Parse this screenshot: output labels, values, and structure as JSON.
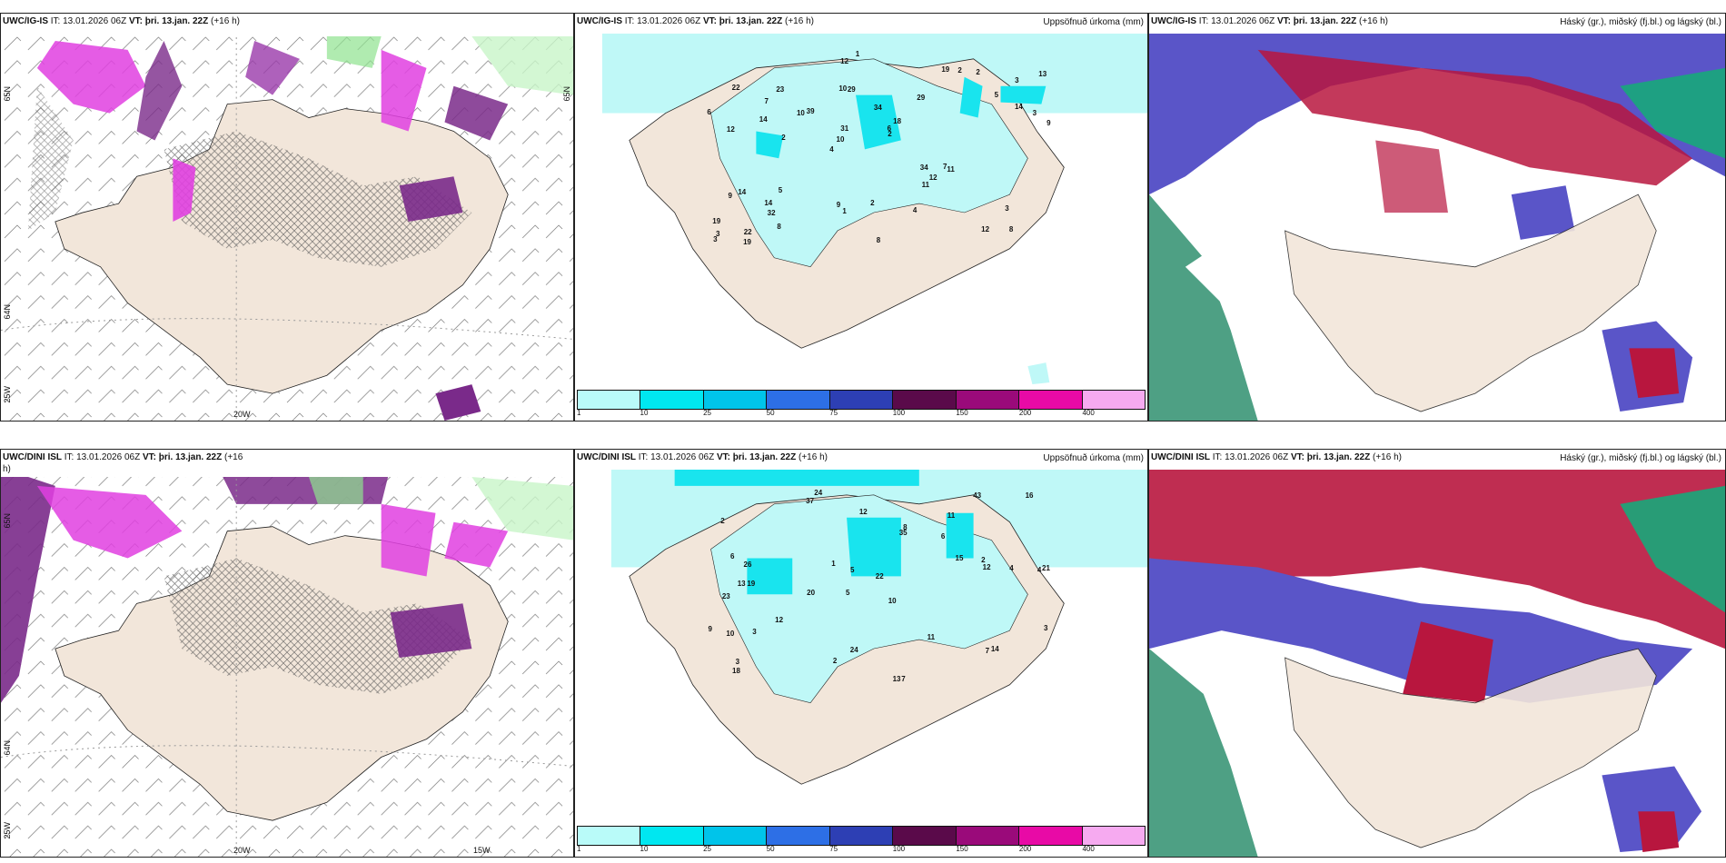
{
  "panels": {
    "p1": {
      "model": "UWC/IG-IS",
      "it": "IT: 13.01.2026 06Z",
      "vt_label": "VT:",
      "vt": "þri. 13.jan. 22Z",
      "lead": "(+16 h)",
      "right_title": "",
      "lon_label": "20W",
      "lat_left": "65N",
      "lat_right": "65N",
      "lat_left2": "64N",
      "lon_left": "25W"
    },
    "p2": {
      "model": "UWC/IG-IS",
      "it": "IT: 13.01.2026 06Z",
      "vt_label": "VT:",
      "vt": "þri. 13.jan. 22Z",
      "lead": "(+16 h)",
      "right_title": "Uppsöfnuð úrkoma (mm)"
    },
    "p3": {
      "model": "UWC/IG-IS",
      "it": "IT: 13.01.2026 06Z",
      "vt_label": "VT:",
      "vt": "þri. 13.jan. 22Z",
      "lead": "(+16 h)",
      "right_title": "Háský (gr.), miðský (fj.bl.) og lágský (bl.)"
    },
    "p4": {
      "model": "UWC/DINI ISL",
      "it": "IT: 13.01.2026 06Z",
      "vt_label": "VT:",
      "vt": "þri. 13.jan. 22Z",
      "lead": "(+16",
      "lead2": "h)",
      "right_title": "",
      "lon_label": "20W",
      "lon_label2": "15W",
      "lat_left": "65N",
      "lat_left2": "64N",
      "lon_left": "25W"
    },
    "p5": {
      "model": "UWC/DINI ISL",
      "it": "IT: 13.01.2026 06Z",
      "vt_label": "VT:",
      "vt": "þri. 13.jan. 22Z",
      "lead": "(+16 h)",
      "right_title": "Uppsöfnuð úrkoma (mm)"
    },
    "p6": {
      "model": "UWC/DINI ISL",
      "it": "IT: 13.01.2026 06Z",
      "vt_label": "VT:",
      "vt": "þri. 13.jan. 22Z",
      "lead": "(+16 h)",
      "right_title": "Háský (gr.), miðský (fj.bl.) og lágský (bl.)"
    }
  },
  "precip_legend": {
    "ticks": [
      "1",
      "10",
      "25",
      "50",
      "75",
      "100",
      "150",
      "200",
      "400"
    ],
    "colors": [
      "#b9fbf9",
      "#00e7f0",
      "#00c4ea",
      "#2d6fe6",
      "#2d3fb4",
      "#5a0a4a",
      "#9a0a7a",
      "#e80aa6",
      "#f6aaf0"
    ]
  },
  "precip_values_ig": [
    "8",
    "12",
    "3",
    "4",
    "29",
    "22",
    "10",
    "34",
    "14",
    "39",
    "19",
    "32",
    "29",
    "18",
    "11",
    "22",
    "12",
    "9",
    "34",
    "14",
    "10",
    "9",
    "31",
    "23",
    "19",
    "5",
    "12",
    "3",
    "7",
    "8",
    "10",
    "14",
    "11",
    "8",
    "3",
    "6",
    "3",
    "1",
    "2",
    "9",
    "5",
    "13",
    "12",
    "4",
    "14",
    "19",
    "3",
    "2",
    "2",
    "1",
    "2",
    "6",
    "7",
    "2"
  ],
  "precip_values_dini": [
    "24",
    "11",
    "4",
    "5",
    "10",
    "19",
    "2",
    "6",
    "23",
    "35",
    "22",
    "18",
    "37",
    "20",
    "13",
    "7",
    "24",
    "43",
    "15",
    "12",
    "26",
    "13",
    "21",
    "4",
    "9",
    "6",
    "5",
    "12",
    "14",
    "10",
    "7",
    "8",
    "3",
    "1",
    "11",
    "3",
    "2",
    "2",
    "16",
    "12",
    "3"
  ],
  "colors": {
    "land": "#f2e6da",
    "precip_light": "#bff8f7",
    "precip_cyan": "#19e4ee",
    "magenta": "#e040e0",
    "purple": "#7a2a8a",
    "cloud_high": "#2f8f6f",
    "cloud_mid": "#5a55c8",
    "cloud_low": "#b8163e"
  }
}
